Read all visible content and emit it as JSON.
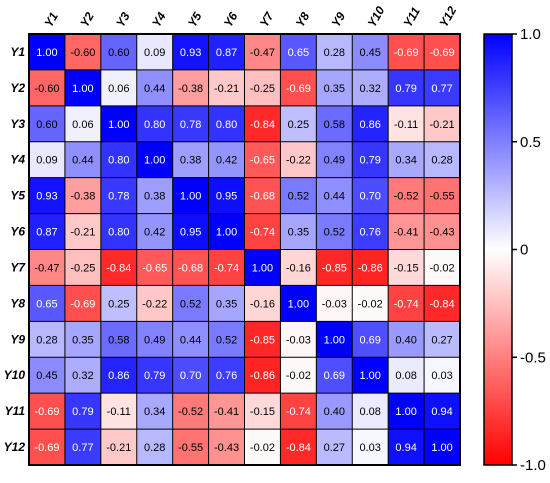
{
  "chart_data": {
    "type": "heatmap",
    "title": "",
    "xlabel": "",
    "ylabel": "",
    "row_labels": [
      "Y1",
      "Y2",
      "Y3",
      "Y4",
      "Y5",
      "Y6",
      "Y7",
      "Y8",
      "Y9",
      "Y10",
      "Y11",
      "Y12"
    ],
    "col_labels": [
      "Y1",
      "Y2",
      "Y3",
      "Y4",
      "Y5",
      "Y6",
      "Y7",
      "Y8",
      "Y9",
      "Y10",
      "Y11",
      "Y12"
    ],
    "values": [
      [
        1.0,
        -0.6,
        0.6,
        0.09,
        0.93,
        0.87,
        -0.47,
        0.65,
        0.28,
        0.45,
        -0.69,
        -0.69
      ],
      [
        -0.6,
        1.0,
        0.06,
        0.44,
        -0.38,
        -0.21,
        -0.25,
        -0.69,
        0.35,
        0.32,
        0.79,
        0.77
      ],
      [
        0.6,
        0.06,
        1.0,
        0.8,
        0.78,
        0.8,
        -0.84,
        0.25,
        0.58,
        0.86,
        -0.11,
        -0.21
      ],
      [
        0.09,
        0.44,
        0.8,
        1.0,
        0.38,
        0.42,
        -0.65,
        -0.22,
        0.49,
        0.79,
        0.34,
        0.28
      ],
      [
        0.93,
        -0.38,
        0.78,
        0.38,
        1.0,
        0.95,
        -0.68,
        0.52,
        0.44,
        0.7,
        -0.52,
        -0.55
      ],
      [
        0.87,
        -0.21,
        0.8,
        0.42,
        0.95,
        1.0,
        -0.74,
        0.35,
        0.52,
        0.76,
        -0.41,
        -0.43
      ],
      [
        -0.47,
        -0.25,
        -0.84,
        -0.65,
        -0.68,
        -0.74,
        1.0,
        -0.16,
        -0.85,
        -0.86,
        -0.15,
        -0.02
      ],
      [
        0.65,
        -0.69,
        0.25,
        -0.22,
        0.52,
        0.35,
        -0.16,
        1.0,
        -0.03,
        -0.02,
        -0.74,
        -0.84
      ],
      [
        0.28,
        0.35,
        0.58,
        0.49,
        0.44,
        0.52,
        -0.85,
        -0.03,
        1.0,
        0.69,
        0.4,
        0.27
      ],
      [
        0.45,
        0.32,
        0.86,
        0.79,
        0.7,
        0.76,
        -0.86,
        -0.02,
        0.69,
        1.0,
        0.08,
        0.03
      ],
      [
        -0.69,
        0.79,
        -0.11,
        0.34,
        -0.52,
        -0.41,
        -0.15,
        -0.74,
        0.4,
        0.08,
        1.0,
        0.94
      ],
      [
        -0.69,
        0.77,
        -0.21,
        0.28,
        -0.55,
        -0.43,
        -0.02,
        -0.84,
        0.27,
        0.03,
        0.94,
        1.0
      ]
    ],
    "colorbar": {
      "min": -1.0,
      "max": 1.0,
      "ticks": [
        1.0,
        0.5,
        0,
        -0.5,
        -1.0
      ],
      "tick_labels": [
        "1.0",
        "0.5",
        "0",
        "-0.5",
        "-1.0"
      ]
    },
    "colors": {
      "positive": "#0000ff",
      "zero": "#ffffff",
      "negative": "#ff0000"
    },
    "grid": true
  }
}
